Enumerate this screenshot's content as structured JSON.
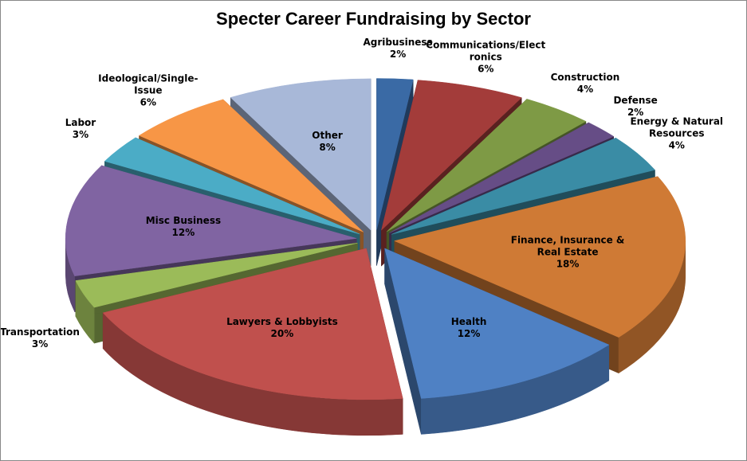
{
  "chart_data": {
    "type": "pie3d",
    "title": "Specter Career Fundraising by Sector",
    "categories": [
      "Agribusiness",
      "Communications/Electronics",
      "Construction",
      "Defense",
      "Energy & Natural Resources",
      "Finance, Insurance & Real Estate",
      "Health",
      "Lawyers & Lobbyists",
      "Transportation",
      "Misc Business",
      "Labor",
      "Ideological/Single-Issue",
      "Other"
    ],
    "values": [
      2,
      6,
      4,
      2,
      4,
      18,
      12,
      20,
      3,
      12,
      3,
      6,
      8
    ],
    "value_labels": [
      "2%",
      "6%",
      "4%",
      "2%",
      "4%",
      "18%",
      "12%",
      "20%",
      "3%",
      "12%",
      "3%",
      "6%",
      "8%"
    ],
    "colors": [
      "#3a6aa5",
      "#a33c3a",
      "#7e9a45",
      "#664d86",
      "#3a8ca5",
      "#cf7a35",
      "#4f81c4",
      "#c0504d",
      "#9bbb59",
      "#8064a2",
      "#4bacc6",
      "#f79646",
      "#a8b8d8"
    ]
  }
}
